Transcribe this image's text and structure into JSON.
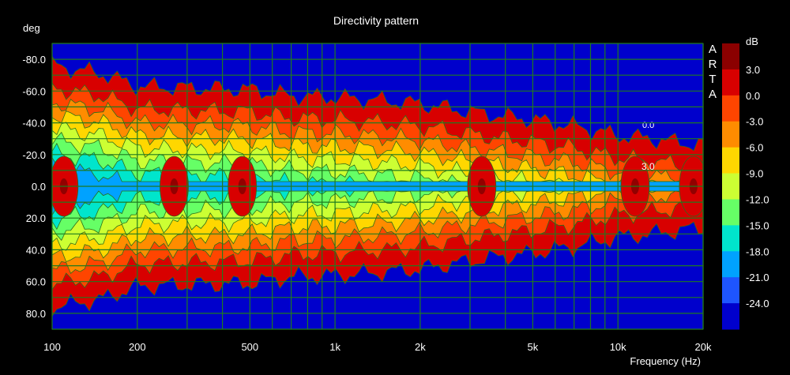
{
  "chart_data": {
    "type": "heatmap",
    "title": "Directivity pattern",
    "ylabel": "deg",
    "xlabel": "Frequency (Hz)",
    "x_scale": "log",
    "xlim": [
      100,
      20000
    ],
    "ylim": [
      -90,
      90
    ],
    "x_ticks": [
      {
        "value": 100,
        "label": "100"
      },
      {
        "value": 200,
        "label": "200"
      },
      {
        "value": 500,
        "label": "500"
      },
      {
        "value": 1000,
        "label": "1k"
      },
      {
        "value": 2000,
        "label": "2k"
      },
      {
        "value": 5000,
        "label": "5k"
      },
      {
        "value": 10000,
        "label": "10k"
      },
      {
        "value": 20000,
        "label": "20k"
      }
    ],
    "y_ticks": [
      {
        "value": -80,
        "label": "-80.0"
      },
      {
        "value": -60,
        "label": "-60.0"
      },
      {
        "value": -40,
        "label": "-40.0"
      },
      {
        "value": -20,
        "label": "-20.0"
      },
      {
        "value": 0,
        "label": "0.0"
      },
      {
        "value": 20,
        "label": "20.0"
      },
      {
        "value": 40,
        "label": "40.0"
      },
      {
        "value": 60,
        "label": "60.0"
      },
      {
        "value": 80,
        "label": "80.0"
      }
    ],
    "grid": true,
    "colorbar": {
      "unit_label": "dB",
      "levels": [
        3.0,
        0.0,
        -3.0,
        -6.0,
        -9.0,
        -12.0,
        -15.0,
        -18.0,
        -21.0,
        -24.0
      ],
      "tick_labels": [
        "3.0",
        "0.0",
        "-3.0",
        "-6.0",
        "-9.0",
        "-12.0",
        "-15.0",
        "-18.0",
        "-21.0",
        "-24.0"
      ],
      "colors": [
        "#8b0000",
        "#d80000",
        "#ff4500",
        "#ff8c00",
        "#ffd700",
        "#ccff33",
        "#66ff66",
        "#00e5cc",
        "#00a2ff",
        "#1e55ff",
        "#0000cc"
      ]
    },
    "contour_annotations": [
      "3.0",
      "0.0"
    ],
    "beamwidth_6db_deg": {
      "frequencies": [
        100,
        150,
        200,
        300,
        500,
        700,
        1000,
        1500,
        2000,
        3000,
        4000,
        5000,
        7000,
        10000,
        13000,
        16000,
        20000
      ],
      "half_angle": [
        62,
        57,
        49,
        48,
        47,
        43,
        42,
        40,
        38,
        33,
        30,
        28,
        24,
        18,
        16,
        14,
        12
      ]
    },
    "hot_spots_above_0db": [
      {
        "freq": 110,
        "angle": 0
      },
      {
        "freq": 270,
        "angle": 0
      },
      {
        "freq": 470,
        "angle": 0
      },
      {
        "freq": 3300,
        "angle": 0
      },
      {
        "freq": 11500,
        "angle": 0
      },
      {
        "freq": 18500,
        "angle": 0
      }
    ],
    "branding": "ARTA"
  }
}
